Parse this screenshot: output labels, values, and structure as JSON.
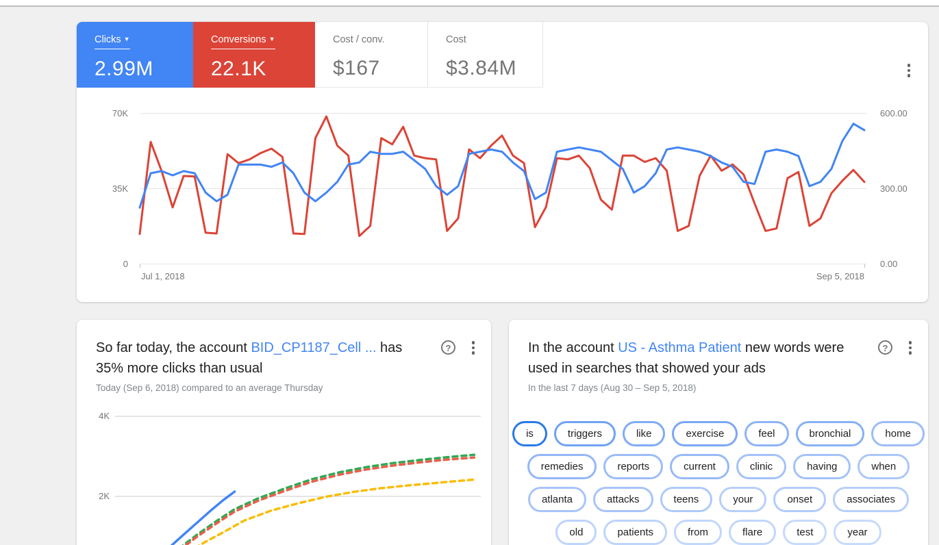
{
  "page": {
    "background": "#f0f0f1",
    "topbar_color": "#ffffff"
  },
  "overview_card": {
    "menu_icon": "kebab-menu",
    "metrics": [
      {
        "label": "Clicks",
        "value": "2.99M",
        "selected": true,
        "color": "#4285f4",
        "has_dropdown": true
      },
      {
        "label": "Conversions",
        "value": "22.1K",
        "selected": true,
        "color": "#db4437",
        "has_dropdown": true
      },
      {
        "label": "Cost / conv.",
        "value": "$167",
        "selected": false
      },
      {
        "label": "Cost",
        "value": "$3.84M",
        "selected": false
      }
    ],
    "chart_data": {
      "type": "line",
      "x_axis": {
        "start_label": "Jul 1, 2018",
        "end_label": "Sep 5, 2018"
      },
      "left_axis": {
        "ticks": [
          "70K",
          "35K",
          "0"
        ],
        "min": 0,
        "max": 70000,
        "metric": "Clicks"
      },
      "right_axis": {
        "ticks": [
          "600.00",
          "300.00",
          "0.00"
        ],
        "min": 0,
        "max": 600,
        "metric": "Conversions"
      },
      "grid": true,
      "legend": "none",
      "series": [
        {
          "name": "Conversions",
          "color": "#db4437",
          "axis": "right",
          "values": [
            118,
            485,
            368,
            224,
            349,
            347,
            123,
            120,
            436,
            400,
            415,
            440,
            458,
            425,
            120,
            118,
            500,
            586,
            470,
            430,
            110,
            150,
            500,
            475,
            545,
            430,
            420,
            415,
            130,
            180,
            455,
            420,
            470,
            510,
            430,
            400,
            145,
            225,
            420,
            415,
            430,
            380,
            255,
            215,
            430,
            430,
            405,
            420,
            370,
            130,
            150,
            350,
            430,
            370,
            395,
            355,
            240,
            130,
            140,
            340,
            365,
            150,
            180,
            280,
            330,
            373,
            325
          ]
        },
        {
          "name": "Clicks",
          "color": "#4285f4",
          "axis": "left",
          "values": [
            26000,
            42000,
            43000,
            41000,
            43000,
            42000,
            33000,
            29000,
            32000,
            46000,
            46000,
            46000,
            45000,
            47000,
            42000,
            33000,
            29000,
            33000,
            38000,
            46000,
            47000,
            52000,
            51000,
            51000,
            52000,
            48000,
            44000,
            36000,
            32000,
            36000,
            51000,
            52000,
            53000,
            52000,
            47000,
            43000,
            30000,
            33000,
            52000,
            53000,
            54000,
            53000,
            52000,
            48000,
            44000,
            33000,
            36000,
            42000,
            53000,
            54000,
            53000,
            52000,
            50000,
            47000,
            45000,
            38000,
            37000,
            52000,
            53000,
            52000,
            50000,
            36000,
            38000,
            44000,
            57000,
            65000,
            62000
          ]
        }
      ]
    }
  },
  "insight_cards": [
    {
      "title_prefix": "So far today, the account ",
      "title_link": "BID_CP1187_Cell ...",
      "title_suffix": " has 35% more clicks than usual",
      "subtitle": "Today (Sep 6, 2018) compared to an average Thursday",
      "help_icon": "help-circle",
      "menu_icon": "kebab-menu",
      "chart_data": {
        "type": "line",
        "y_ticks": [
          "4K",
          "2K"
        ],
        "ylim": [
          0,
          4360
        ],
        "x_axis_note": "time of day (axis cut off below fold)",
        "grid": true,
        "series": [
          {
            "name": "clicks-today",
            "style": "solid",
            "color": "#4285f4",
            "points": [
              [
                0.155,
                780
              ],
              [
                0.188,
                1050
              ],
              [
                0.225,
                1350
              ],
              [
                0.262,
                1650
              ],
              [
                0.295,
                1900
              ],
              [
                0.327,
                2120
              ]
            ]
          },
          {
            "name": "typical-upper",
            "style": "dashed",
            "color": "#34a853",
            "points": [
              [
                0.175,
                700
              ],
              [
                0.225,
                1050
              ],
              [
                0.28,
                1400
              ],
              [
                0.327,
                1680
              ],
              [
                0.391,
                1950
              ],
              [
                0.465,
                2200
              ],
              [
                0.539,
                2430
              ],
              [
                0.613,
                2600
              ],
              [
                0.686,
                2730
              ],
              [
                0.76,
                2830
              ],
              [
                0.834,
                2910
              ],
              [
                0.908,
                2980
              ],
              [
                0.982,
                3040
              ]
            ]
          },
          {
            "name": "typical-average",
            "style": "dashed",
            "color": "#e8604c",
            "points": [
              [
                0.175,
                650
              ],
              [
                0.225,
                1000
              ],
              [
                0.28,
                1340
              ],
              [
                0.327,
                1620
              ],
              [
                0.391,
                1890
              ],
              [
                0.465,
                2140
              ],
              [
                0.539,
                2370
              ],
              [
                0.613,
                2540
              ],
              [
                0.686,
                2670
              ],
              [
                0.76,
                2770
              ],
              [
                0.834,
                2850
              ],
              [
                0.908,
                2920
              ],
              [
                0.982,
                2970
              ]
            ]
          },
          {
            "name": "typical-lower",
            "style": "dashed",
            "color": "#fbbc04",
            "points": [
              [
                0.197,
                600
              ],
              [
                0.244,
                850
              ],
              [
                0.299,
                1120
              ],
              [
                0.354,
                1400
              ],
              [
                0.428,
                1650
              ],
              [
                0.502,
                1830
              ],
              [
                0.576,
                1990
              ],
              [
                0.65,
                2110
              ],
              [
                0.723,
                2200
              ],
              [
                0.797,
                2270
              ],
              [
                0.871,
                2330
              ],
              [
                0.982,
                2420
              ]
            ]
          }
        ]
      }
    },
    {
      "title_prefix": "In the account ",
      "title_link": "US - Asthma Patient",
      "title_suffix": " new words were used in searches that showed your ads",
      "subtitle": "In the last 7 days (Aug 30 – Sep 5, 2018)",
      "help_icon": "help-circle",
      "menu_icon": "kebab-menu",
      "word_chips": {
        "rows": [
          [
            {
              "label": "is",
              "border": "#2979e8"
            },
            {
              "label": "triggers",
              "border": "#6ea2f4"
            },
            {
              "label": "like",
              "border": "#7fabf5"
            },
            {
              "label": "exercise",
              "border": "#7aa7f5"
            },
            {
              "label": "feel",
              "border": "#8db3f7"
            },
            {
              "label": "bronchial",
              "border": "#88b0f6"
            },
            {
              "label": "home",
              "border": "#9cbcf8"
            }
          ],
          [
            {
              "label": "remedies",
              "border": "#93b7f7"
            },
            {
              "label": "reports",
              "border": "#9cbcf8"
            },
            {
              "label": "current",
              "border": "#96b9f7"
            },
            {
              "label": "clinic",
              "border": "#a3c2f9"
            },
            {
              "label": "having",
              "border": "#a3c2f9"
            },
            {
              "label": "when",
              "border": "#abc7f9"
            }
          ],
          [
            {
              "label": "atlanta",
              "border": "#a7c4f9"
            },
            {
              "label": "attacks",
              "border": "#a7c4f9"
            },
            {
              "label": "teens",
              "border": "#aec9fa"
            },
            {
              "label": "your",
              "border": "#b6cffa"
            },
            {
              "label": "onset",
              "border": "#b2ccfa"
            },
            {
              "label": "associates",
              "border": "#b6cffa"
            }
          ],
          [
            {
              "label": "old",
              "border": "#bdd4fb"
            },
            {
              "label": "patients",
              "border": "#bdd4fb"
            },
            {
              "label": "from",
              "border": "#c1d7fb"
            },
            {
              "label": "flare",
              "border": "#c1d7fb"
            },
            {
              "label": "test",
              "border": "#c6dafc"
            },
            {
              "label": "year",
              "border": "#c6dafc"
            }
          ]
        ]
      }
    }
  ]
}
